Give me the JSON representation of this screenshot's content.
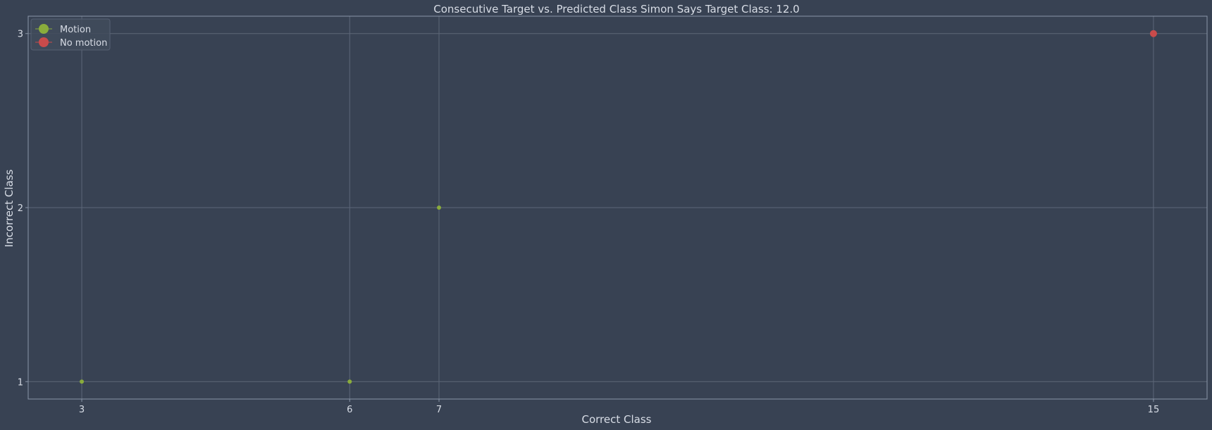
{
  "chart_data": {
    "type": "scatter",
    "title": "Consecutive Target vs. Predicted Class Simon Says Target Class: 12.0",
    "xlabel": "Correct Class",
    "ylabel": "Incorrect Class",
    "xlim": [
      2.4,
      15.6
    ],
    "ylim": [
      0.9,
      3.1
    ],
    "xticks": [
      3,
      6,
      7,
      15
    ],
    "yticks": [
      1,
      2,
      3
    ],
    "grid": true,
    "legend_position": "top-left",
    "colors": {
      "background": "#384253",
      "grid": "#5d6778",
      "frame": "#8a96a8",
      "text": "#d8dde6",
      "legend_bg": "#414b5c"
    },
    "series": [
      {
        "name": "Motion",
        "color": "#8aac3c",
        "points": [
          {
            "x": 3,
            "y": 1,
            "size": "small"
          },
          {
            "x": 6,
            "y": 1,
            "size": "small"
          },
          {
            "x": 7,
            "y": 2,
            "size": "small"
          }
        ]
      },
      {
        "name": "No motion",
        "color": "#c94b4b",
        "points": [
          {
            "x": 15,
            "y": 3,
            "size": "large"
          }
        ]
      }
    ]
  }
}
